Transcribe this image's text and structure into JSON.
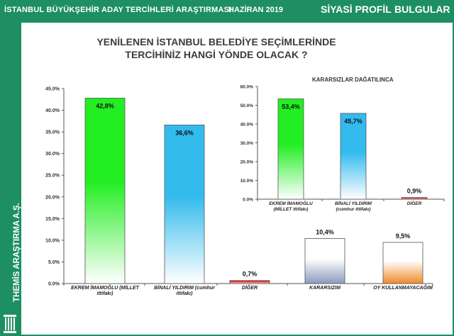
{
  "header": {
    "title": "İSTANBUL BÜYÜKŞEHİR ADAY TERCİHLERİ ARAŞTIRMASI",
    "date": "HAZİRAN  2019",
    "section": "SİYASİ PROFİL",
    "subsection": "BULGULAR"
  },
  "sidebar": {
    "brand": "THEMİS ARAŞTIRMA A.Ş."
  },
  "chart_data": [
    {
      "type": "bar",
      "title_lines": [
        "YENİLENEN İSTANBUL BELEDİYE SEÇİMLERİNDE",
        "TERCİHİNİZ HANGİ YÖNDE OLACAK ?"
      ],
      "categories": [
        [
          "EKREM İMAMOĞLU (MİLLET",
          "ittifakı)"
        ],
        [
          "BİNALİ YILDIRIM (cumhur",
          "ittifakı)"
        ],
        [
          "DİĞER"
        ],
        [
          "KARARSIZIM"
        ],
        [
          "OY KULLANMAYACAĞIM"
        ]
      ],
      "values": [
        42.8,
        36.6,
        0.7,
        10.4,
        9.5
      ],
      "value_labels": [
        "42,8%",
        "36,6%",
        "0,7%",
        "10,4%",
        "9,5%"
      ],
      "yticks": [
        "0.0%",
        "5.0%",
        "10.0%",
        "15.0%",
        "20.0%",
        "25.0%",
        "30.0%",
        "35.0%",
        "40.0%",
        "45.0%"
      ],
      "ylim": [
        0,
        45
      ],
      "colors": [
        [
          "#22ee22",
          "#ffffff"
        ],
        [
          "#33bbee",
          "#ffffff"
        ],
        [
          "#ee3333",
          "#ffffff"
        ],
        [
          "#ffffff",
          "#8a9bbd"
        ],
        [
          "#ffffff",
          "#f08a2a"
        ]
      ]
    },
    {
      "type": "bar",
      "title": "KARARSIZLAR DAĞATILINCA",
      "categories": [
        [
          "EKREM İMAMOĞLU",
          "(MİLLET ittifakı)"
        ],
        [
          "BİNALİ YILDIRIM",
          "(cumhur ittifakı)"
        ],
        [
          "DİĞER"
        ]
      ],
      "values": [
        53.4,
        45.7,
        0.9
      ],
      "value_labels": [
        "53,4%",
        "45,7%",
        "0,9%"
      ],
      "yticks": [
        "0.0%",
        "10.0%",
        "20.0%",
        "30.0%",
        "40.0%",
        "50.0%",
        "60.0%"
      ],
      "ylim": [
        0,
        60
      ],
      "colors": [
        [
          "#22ee22",
          "#ffffff"
        ],
        [
          "#33bbee",
          "#ffffff"
        ],
        [
          "#ee3333",
          "#ffffff"
        ]
      ]
    }
  ]
}
